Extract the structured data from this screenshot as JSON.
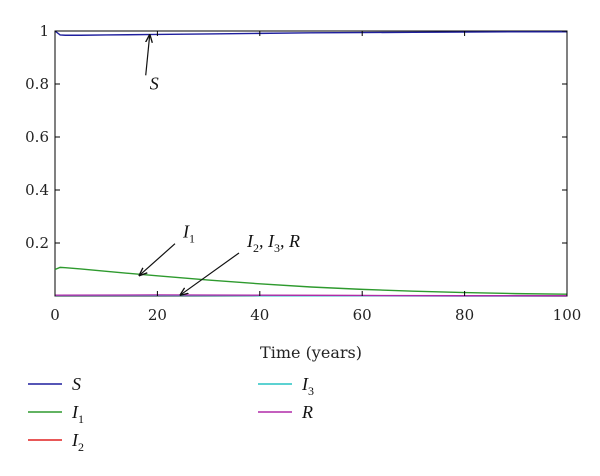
{
  "chart_data": {
    "type": "line",
    "xlabel": "Time (years)",
    "xlim": [
      0,
      100
    ],
    "ylim": [
      0,
      1
    ],
    "xticks": [
      0,
      20,
      40,
      60,
      80,
      100
    ],
    "yticks": [
      0.2,
      0.4,
      0.6,
      0.8,
      1
    ],
    "xtick_labels": [
      "0",
      "20",
      "40",
      "60",
      "80",
      "100"
    ],
    "ytick_labels": [
      "0.2",
      "0.4",
      "0.6",
      "0.8",
      "1"
    ],
    "grid": false,
    "legend_position": "bottom",
    "series": [
      {
        "name": "S",
        "base": "S",
        "sub": "",
        "color": "#1f1f9e",
        "x": [
          0,
          1,
          2,
          5,
          10,
          20,
          30,
          40,
          50,
          60,
          70,
          80,
          90,
          100
        ],
        "y": [
          1.0,
          0.985,
          0.984,
          0.984,
          0.985,
          0.987,
          0.989,
          0.991,
          0.993,
          0.994,
          0.995,
          0.996,
          0.997,
          0.997
        ]
      },
      {
        "name": "I1",
        "base": "I",
        "sub": "1",
        "color": "#2e9a2e",
        "x": [
          0,
          1,
          2,
          5,
          10,
          20,
          30,
          40,
          50,
          60,
          70,
          80,
          90,
          100
        ],
        "y": [
          0.1,
          0.108,
          0.107,
          0.102,
          0.093,
          0.076,
          0.06,
          0.046,
          0.034,
          0.025,
          0.018,
          0.013,
          0.009,
          0.007
        ]
      },
      {
        "name": "I2",
        "base": "I",
        "sub": "2",
        "color": "#e02020",
        "x": [
          0,
          20,
          40,
          60,
          80,
          100
        ],
        "y": [
          0.003,
          0.003,
          0.002,
          0.001,
          0.001,
          0.0
        ]
      },
      {
        "name": "I3",
        "base": "I",
        "sub": "3",
        "color": "#27c4c4",
        "x": [
          0,
          20,
          40,
          60,
          80,
          100
        ],
        "y": [
          0.002,
          0.002,
          0.001,
          0.001,
          0.0,
          0.0
        ]
      },
      {
        "name": "R",
        "base": "R",
        "sub": "",
        "color": "#b02aa8",
        "x": [
          0,
          20,
          40,
          60,
          80,
          100
        ],
        "y": [
          0.003,
          0.004,
          0.003,
          0.002,
          0.001,
          0.001
        ]
      }
    ],
    "annotations": [
      {
        "label": "S",
        "parts": [
          {
            "t": "S",
            "sub": false
          }
        ],
        "text_at": [
          18.5,
          0.78
        ],
        "arrow_to": [
          18.5,
          0.985
        ]
      },
      {
        "label": "I1",
        "parts": [
          {
            "t": "I",
            "sub": false
          },
          {
            "t": "1",
            "sub": true
          }
        ],
        "text_at": [
          25,
          0.22
        ],
        "arrow_to": [
          16.5,
          0.078
        ]
      },
      {
        "label": "I2, I3, R",
        "parts": [
          {
            "t": "I",
            "sub": false
          },
          {
            "t": "2",
            "sub": true
          },
          {
            "t": ", I",
            "sub": false
          },
          {
            "t": "3",
            "sub": true
          },
          {
            "t": ", R",
            "sub": false
          }
        ],
        "text_at": [
          37.5,
          0.185
        ],
        "arrow_to": [
          24.5,
          0.004
        ]
      }
    ]
  }
}
